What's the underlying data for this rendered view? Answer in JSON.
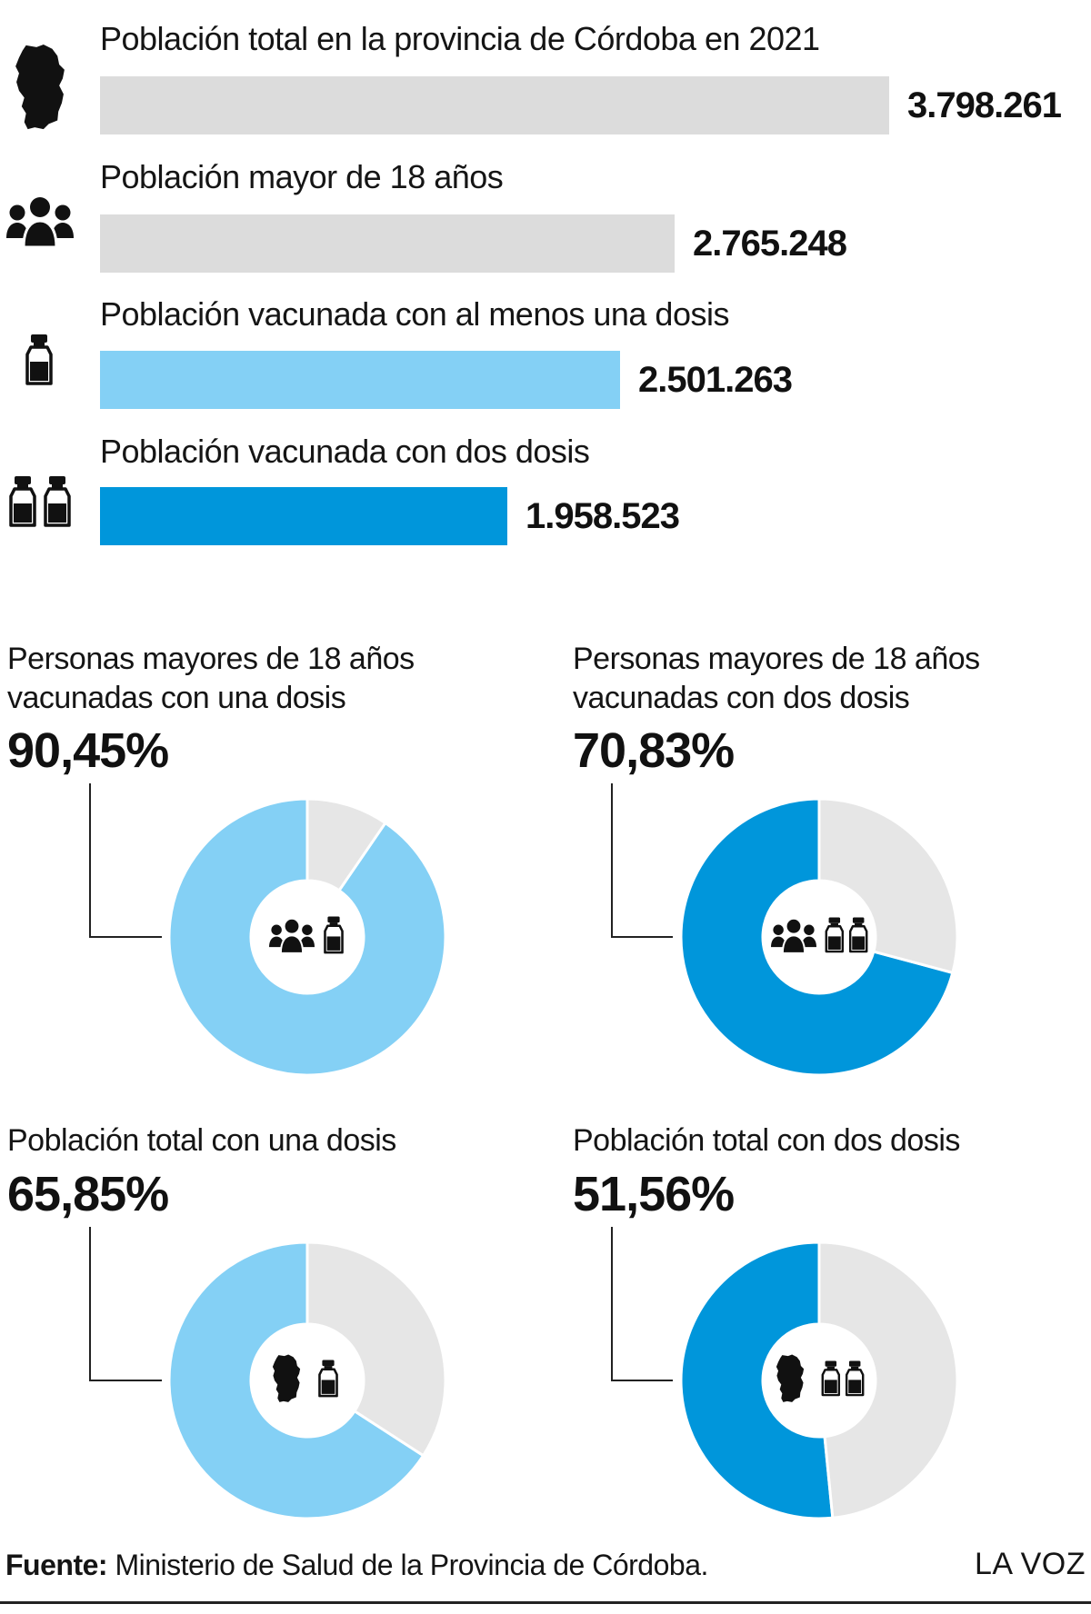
{
  "colors": {
    "gray": "#dcdcdc",
    "donut_gray": "#e6e6e6",
    "light_blue": "#84d0f5",
    "blue": "#0096db",
    "text": "#151515"
  },
  "chart_data": [
    {
      "type": "bar",
      "orientation": "horizontal",
      "categories": [
        "Población total en la provincia de Córdoba en 2021",
        "Población mayor de 18 años",
        "Población vacunada con al menos una dosis",
        "Población vacunada con dos dosis"
      ],
      "values": [
        3798261,
        2765248,
        2501263,
        1958523
      ],
      "value_labels": [
        "3.798.261",
        "2.765.248",
        "2.501.263",
        "1.958.523"
      ],
      "icons": [
        "cordoba-map-icon",
        "people-group-icon",
        "vaccine-vial-icon",
        "two-vaccine-vials-icon"
      ],
      "bar_colors": [
        "#dcdcdc",
        "#dcdcdc",
        "#84d0f5",
        "#0096db"
      ],
      "xlim": [
        0,
        3798261
      ]
    },
    {
      "type": "pie",
      "title": "Personas mayores de 18 años vacunadas con una dosis",
      "value_label": "90,45%",
      "value": 90.45,
      "color": "#84d0f5",
      "icons": [
        "people-group-icon",
        "vaccine-vial-icon"
      ]
    },
    {
      "type": "pie",
      "title": "Personas mayores de 18 años vacunadas con dos dosis",
      "value_label": "70,83%",
      "value": 70.83,
      "color": "#0096db",
      "icons": [
        "people-group-icon",
        "two-vaccine-vials-icon"
      ]
    },
    {
      "type": "pie",
      "title": "Población total con una dosis",
      "value_label": "65,85%",
      "value": 65.85,
      "color": "#84d0f5",
      "icons": [
        "cordoba-map-icon",
        "vaccine-vial-icon"
      ]
    },
    {
      "type": "pie",
      "title": "Población total con dos dosis",
      "value_label": "51,56%",
      "value": 51.56,
      "color": "#0096db",
      "icons": [
        "cordoba-map-icon",
        "two-vaccine-vials-icon"
      ]
    }
  ],
  "donuts": [
    {
      "title_line1": "Personas mayores de 18 años",
      "title_line2": "vacunadas con una dosis",
      "pct": "90,45%"
    },
    {
      "title_line1": "Personas mayores de 18 años",
      "title_line2": "vacunadas con dos dosis",
      "pct": "70,83%"
    },
    {
      "title_line1": "Población total con una dosis",
      "title_line2": "",
      "pct": "65,85%"
    },
    {
      "title_line1": "Población total con dos dosis",
      "title_line2": "",
      "pct": "51,56%"
    }
  ],
  "footer": {
    "source_label": "Fuente:",
    "source_text": " Ministerio de Salud de la Provincia de Córdoba.",
    "brand": "LA VOZ"
  }
}
